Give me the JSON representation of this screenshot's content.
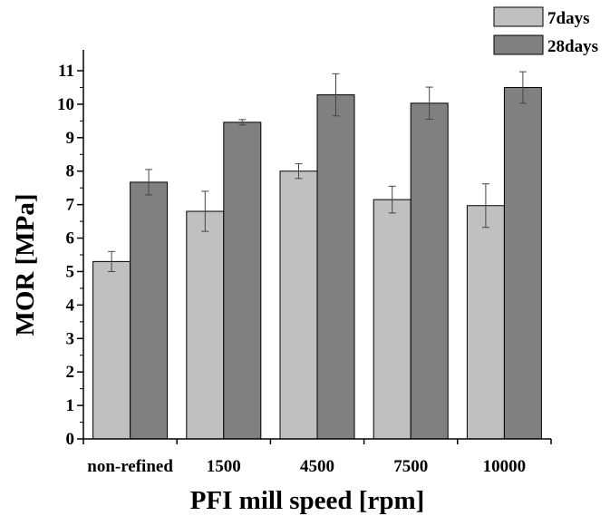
{
  "chart_data": {
    "type": "bar",
    "title": "",
    "xlabel": "PFI mill speed [rpm]",
    "ylabel": "MOR [MPa]",
    "categories": [
      "non-refined",
      "1500",
      "4500",
      "7500",
      "10000"
    ],
    "ylim": [
      0,
      11
    ],
    "yticks": [
      0,
      1,
      2,
      3,
      4,
      5,
      6,
      7,
      8,
      9,
      10,
      11
    ],
    "grid": false,
    "legend_position": "top-right",
    "series": [
      {
        "name": "7days",
        "color": "#c0c0c0",
        "values": [
          5.3,
          6.8,
          8.0,
          7.15,
          6.97
        ],
        "error": [
          0.3,
          0.6,
          0.22,
          0.4,
          0.65
        ]
      },
      {
        "name": "28days",
        "color": "#808080",
        "values": [
          7.67,
          9.46,
          10.28,
          10.03,
          10.5
        ],
        "error": [
          0.38,
          0.08,
          0.63,
          0.48,
          0.47
        ]
      }
    ]
  }
}
